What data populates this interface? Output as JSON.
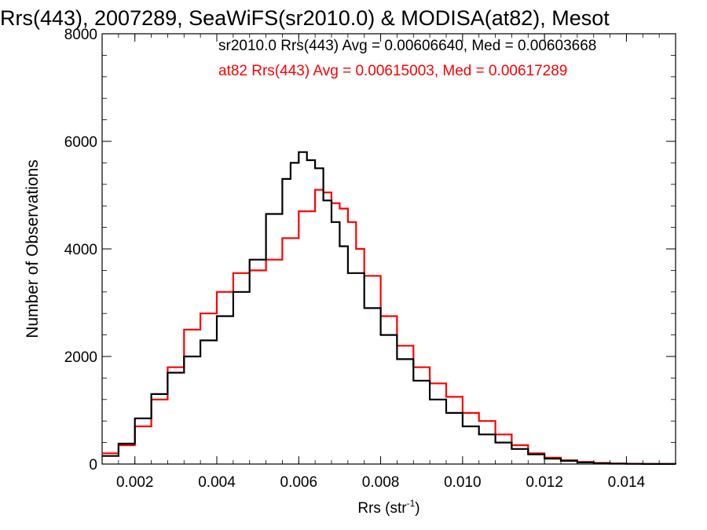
{
  "chart_data": {
    "type": "line",
    "title": "Rrs(443), 2007289, SeaWiFS(sr2010.0) & MODISA(at82), Mesot",
    "xlabel": "Rrs (str",
    "xlabel_sup": "-1",
    "xlabel_tail": ")",
    "ylabel": "Number of Observations",
    "xlim": [
      0.0012,
      0.0152
    ],
    "ylim": [
      0,
      8000
    ],
    "x_ticks": [
      0.002,
      0.004,
      0.006,
      0.008,
      0.01,
      0.012,
      0.014
    ],
    "x_tick_labels": [
      "0.002",
      "0.004",
      "0.006",
      "0.008",
      "0.010",
      "0.012",
      "0.014"
    ],
    "y_ticks": [
      0,
      2000,
      4000,
      6000,
      8000
    ],
    "y_tick_labels": [
      "0",
      "2000",
      "4000",
      "6000",
      "8000"
    ],
    "annotations": [
      {
        "text": "sr2010.0 Rrs(443) Avg = 0.00606640, Med = 0.00603668",
        "color": "#000000"
      },
      {
        "text": "at82 Rrs(443) Avg = 0.00615003, Med = 0.00617289",
        "color": "#ff0000"
      }
    ],
    "series": [
      {
        "name": "sr2010.0",
        "color": "#000000",
        "x": [
          0.0012,
          0.0016,
          0.002,
          0.0024,
          0.0028,
          0.0032,
          0.0036,
          0.004,
          0.0044,
          0.0048,
          0.0052,
          0.0056,
          0.0058,
          0.006,
          0.0062,
          0.0064,
          0.0066,
          0.0068,
          0.007,
          0.0072,
          0.0076,
          0.008,
          0.0084,
          0.0088,
          0.0092,
          0.0096,
          0.01,
          0.0104,
          0.0108,
          0.0112,
          0.0116,
          0.012,
          0.0124,
          0.0128,
          0.0132,
          0.0136,
          0.014,
          0.0144,
          0.0148,
          0.0152
        ],
        "y": [
          150,
          380,
          850,
          1300,
          1700,
          2000,
          2300,
          2750,
          3200,
          3800,
          4650,
          5300,
          5600,
          5800,
          5650,
          5500,
          4900,
          4500,
          4050,
          3550,
          2900,
          2400,
          1950,
          1550,
          1200,
          950,
          700,
          550,
          400,
          280,
          180,
          100,
          60,
          30,
          15,
          8,
          5,
          2,
          1,
          0
        ]
      },
      {
        "name": "at82",
        "color": "#ff0000",
        "x": [
          0.0012,
          0.0016,
          0.002,
          0.0024,
          0.0028,
          0.0032,
          0.0036,
          0.004,
          0.0044,
          0.0048,
          0.0052,
          0.0056,
          0.006,
          0.0064,
          0.0066,
          0.0068,
          0.007,
          0.0072,
          0.0074,
          0.0076,
          0.008,
          0.0084,
          0.0088,
          0.0092,
          0.0096,
          0.01,
          0.0104,
          0.0108,
          0.0112,
          0.0116,
          0.012,
          0.0124,
          0.0128,
          0.0132,
          0.0136,
          0.014,
          0.0144,
          0.0148,
          0.0152
        ],
        "y": [
          200,
          350,
          700,
          1200,
          1800,
          2500,
          2800,
          3200,
          3550,
          3600,
          3800,
          4200,
          4700,
          5100,
          5050,
          4850,
          4750,
          4500,
          4000,
          3500,
          2750,
          2200,
          1800,
          1500,
          1250,
          950,
          800,
          550,
          350,
          200,
          120,
          70,
          40,
          20,
          10,
          5,
          2,
          1,
          0
        ]
      }
    ]
  }
}
